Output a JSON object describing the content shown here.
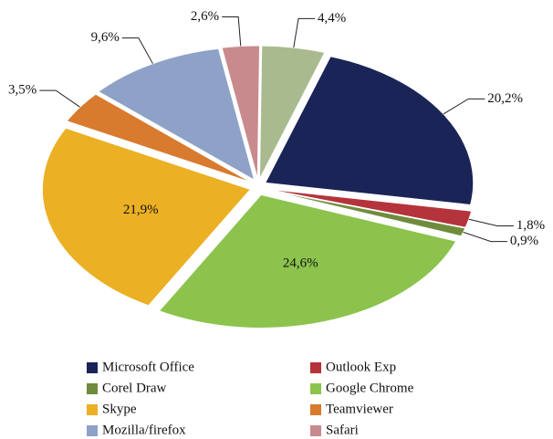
{
  "chart_data": {
    "type": "pie",
    "categories": [
      null,
      "Microsoft Office",
      "Outlook Exp",
      "Corel Draw",
      "Google Chrome",
      "Skype",
      "Teamviewer",
      "Mozilla/firefox",
      "Safari"
    ],
    "values": [
      4.4,
      20.2,
      1.8,
      0.9,
      24.6,
      21.9,
      3.5,
      9.6,
      2.6
    ],
    "value_labels": [
      "4,4%",
      "20,2%",
      "1,8%",
      "0,9%",
      "24,6%",
      "21,9%",
      "3,5%",
      "9,6%",
      "2,6%"
    ],
    "colors": [
      "#a9bb8e",
      "#1b2456",
      "#b5333a",
      "#6f8c3c",
      "#8cc34d",
      "#ebb024",
      "#d87b2e",
      "#8ea2c8",
      "#c98a8d"
    ],
    "legend": "bottom"
  }
}
